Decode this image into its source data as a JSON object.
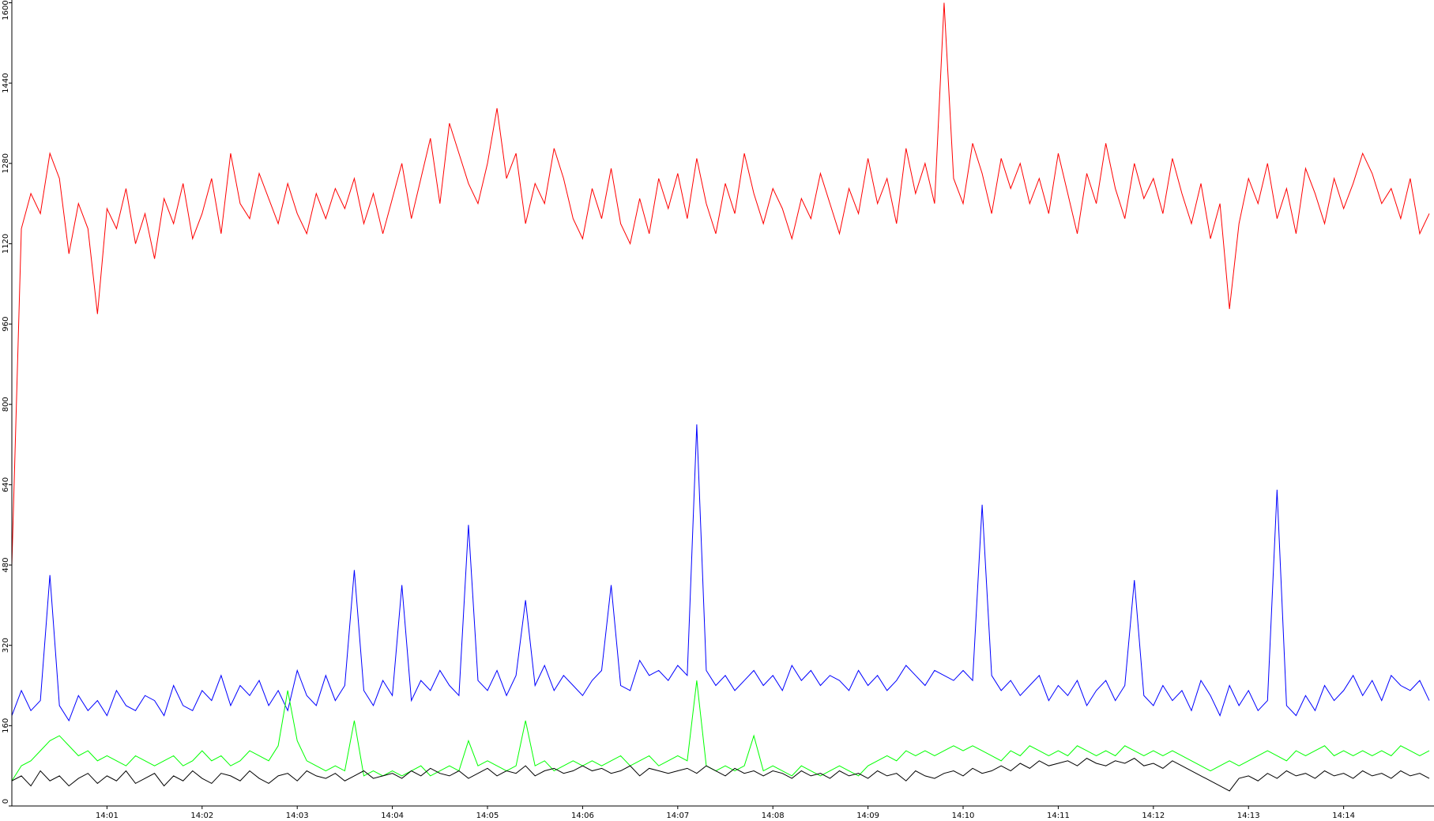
{
  "chart_data": {
    "type": "line",
    "x": [
      0,
      0.1,
      0.2,
      0.3,
      0.4,
      0.5,
      0.6,
      0.7,
      0.8,
      0.9,
      1,
      1.1,
      1.2,
      1.3,
      1.4,
      1.5,
      1.6,
      1.7,
      1.8,
      1.9,
      2,
      2.1,
      2.2,
      2.3,
      2.4,
      2.5,
      2.6,
      2.7,
      2.8,
      2.9,
      3,
      3.1,
      3.2,
      3.3,
      3.4,
      3.5,
      3.6,
      3.7,
      3.8,
      3.9,
      4,
      4.1,
      4.2,
      4.3,
      4.4,
      4.5,
      4.6,
      4.7,
      4.8,
      4.9,
      5,
      5.1,
      5.2,
      5.3,
      5.4,
      5.5,
      5.6,
      5.7,
      5.8,
      5.9,
      6,
      6.1,
      6.2,
      6.3,
      6.4,
      6.5,
      6.6,
      6.7,
      6.8,
      6.9,
      7,
      7.1,
      7.2,
      7.3,
      7.4,
      7.5,
      7.6,
      7.7,
      7.8,
      7.9,
      8,
      8.1,
      8.2,
      8.3,
      8.4,
      8.5,
      8.6,
      8.7,
      8.8,
      8.9,
      9,
      9.1,
      9.2,
      9.3,
      9.4,
      9.5,
      9.6,
      9.7,
      9.8,
      9.9,
      10,
      10.1,
      10.2,
      10.3,
      10.4,
      10.5,
      10.6,
      10.7,
      10.8,
      10.9,
      11,
      11.1,
      11.2,
      11.3,
      11.4,
      11.5,
      11.6,
      11.7,
      11.8,
      11.9,
      12,
      12.1,
      12.2,
      12.3,
      12.4,
      12.5,
      12.6,
      12.7,
      12.8,
      12.9,
      13,
      13.1,
      13.2,
      13.3,
      13.4,
      13.5,
      13.6,
      13.7,
      13.8,
      13.9,
      14,
      14.1,
      14.2,
      14.3,
      14.4,
      14.5,
      14.6,
      14.7,
      14.8,
      14.9
    ],
    "series": [
      {
        "color": "#ff0000",
        "values": [
          480,
          1150,
          1220,
          1180,
          1300,
          1250,
          1100,
          1200,
          1150,
          980,
          1190,
          1150,
          1230,
          1120,
          1180,
          1090,
          1210,
          1160,
          1240,
          1130,
          1180,
          1250,
          1140,
          1300,
          1200,
          1170,
          1260,
          1210,
          1160,
          1240,
          1180,
          1140,
          1220,
          1170,
          1230,
          1190,
          1250,
          1160,
          1220,
          1140,
          1210,
          1280,
          1170,
          1250,
          1330,
          1200,
          1360,
          1300,
          1240,
          1200,
          1280,
          1390,
          1250,
          1300,
          1160,
          1240,
          1200,
          1310,
          1250,
          1170,
          1130,
          1230,
          1170,
          1270,
          1160,
          1120,
          1210,
          1140,
          1250,
          1190,
          1260,
          1170,
          1290,
          1200,
          1140,
          1240,
          1180,
          1300,
          1220,
          1160,
          1230,
          1190,
          1130,
          1210,
          1170,
          1260,
          1200,
          1140,
          1230,
          1180,
          1290,
          1200,
          1250,
          1160,
          1310,
          1220,
          1280,
          1200,
          1600,
          1250,
          1200,
          1320,
          1260,
          1180,
          1290,
          1230,
          1280,
          1200,
          1250,
          1180,
          1300,
          1220,
          1140,
          1260,
          1200,
          1320,
          1230,
          1170,
          1280,
          1210,
          1250,
          1180,
          1290,
          1220,
          1160,
          1240,
          1130,
          1200,
          990,
          1160,
          1250,
          1200,
          1280,
          1170,
          1230,
          1140,
          1270,
          1220,
          1160,
          1250,
          1190,
          1240,
          1300,
          1260,
          1200,
          1230,
          1170,
          1250,
          1140,
          1180
        ]
      },
      {
        "color": "#0000ff",
        "values": [
          180,
          230,
          190,
          210,
          460,
          200,
          170,
          220,
          190,
          210,
          180,
          230,
          200,
          190,
          220,
          210,
          180,
          240,
          200,
          190,
          230,
          210,
          260,
          200,
          240,
          220,
          250,
          200,
          230,
          190,
          270,
          220,
          200,
          260,
          210,
          240,
          470,
          230,
          200,
          250,
          220,
          440,
          210,
          250,
          230,
          270,
          240,
          220,
          560,
          250,
          230,
          270,
          220,
          260,
          410,
          240,
          280,
          230,
          260,
          240,
          220,
          250,
          270,
          440,
          240,
          230,
          290,
          260,
          270,
          250,
          280,
          260,
          760,
          270,
          240,
          260,
          230,
          250,
          270,
          240,
          260,
          230,
          280,
          250,
          270,
          240,
          260,
          250,
          230,
          270,
          240,
          260,
          230,
          250,
          280,
          260,
          240,
          270,
          260,
          250,
          270,
          250,
          600,
          260,
          230,
          250,
          220,
          240,
          260,
          210,
          240,
          220,
          250,
          200,
          230,
          250,
          210,
          240,
          450,
          220,
          200,
          240,
          210,
          230,
          190,
          250,
          220,
          180,
          240,
          200,
          230,
          190,
          210,
          630,
          200,
          180,
          220,
          190,
          240,
          210,
          230,
          260,
          220,
          250,
          210,
          260,
          240,
          230,
          250,
          210
        ]
      },
      {
        "color": "#00ff00",
        "values": [
          50,
          80,
          90,
          110,
          130,
          140,
          120,
          100,
          110,
          90,
          100,
          90,
          80,
          100,
          90,
          80,
          90,
          100,
          80,
          90,
          110,
          90,
          100,
          80,
          90,
          110,
          100,
          90,
          120,
          230,
          130,
          90,
          80,
          70,
          80,
          70,
          170,
          60,
          70,
          60,
          70,
          60,
          70,
          80,
          60,
          70,
          80,
          70,
          130,
          80,
          90,
          80,
          70,
          80,
          170,
          80,
          90,
          70,
          80,
          90,
          80,
          90,
          80,
          90,
          100,
          80,
          90,
          100,
          80,
          90,
          100,
          90,
          250,
          80,
          70,
          80,
          70,
          80,
          140,
          70,
          80,
          70,
          60,
          80,
          70,
          60,
          70,
          80,
          70,
          60,
          80,
          90,
          100,
          90,
          110,
          100,
          110,
          100,
          110,
          120,
          110,
          120,
          110,
          100,
          90,
          110,
          100,
          120,
          110,
          100,
          110,
          100,
          120,
          110,
          100,
          110,
          100,
          120,
          110,
          100,
          110,
          100,
          110,
          100,
          90,
          80,
          70,
          80,
          90,
          80,
          90,
          100,
          110,
          100,
          90,
          110,
          100,
          110,
          120,
          100,
          110,
          100,
          110,
          100,
          110,
          100,
          120,
          110,
          100,
          110
        ]
      },
      {
        "color": "#000000",
        "values": [
          50,
          60,
          40,
          70,
          50,
          60,
          40,
          55,
          65,
          45,
          60,
          50,
          70,
          45,
          55,
          65,
          40,
          60,
          50,
          70,
          55,
          45,
          65,
          60,
          50,
          70,
          55,
          45,
          60,
          65,
          50,
          70,
          60,
          55,
          65,
          50,
          60,
          70,
          55,
          60,
          65,
          55,
          70,
          60,
          75,
          65,
          60,
          70,
          55,
          65,
          75,
          60,
          70,
          65,
          80,
          60,
          70,
          75,
          65,
          70,
          80,
          70,
          75,
          65,
          70,
          80,
          60,
          75,
          70,
          65,
          70,
          75,
          65,
          80,
          70,
          60,
          75,
          65,
          70,
          60,
          70,
          65,
          55,
          70,
          60,
          65,
          55,
          70,
          60,
          65,
          55,
          70,
          60,
          65,
          50,
          70,
          60,
          55,
          65,
          70,
          60,
          75,
          65,
          70,
          80,
          70,
          85,
          75,
          90,
          80,
          85,
          90,
          80,
          95,
          85,
          80,
          90,
          85,
          95,
          80,
          85,
          75,
          90,
          80,
          70,
          60,
          50,
          40,
          30,
          55,
          60,
          50,
          65,
          55,
          70,
          60,
          65,
          55,
          70,
          60,
          65,
          55,
          70,
          60,
          65,
          55,
          70,
          60,
          65,
          55
        ]
      }
    ],
    "xlim": [
      0,
      14.95
    ],
    "xticks": [
      {
        "value": 1,
        "label": "14:01"
      },
      {
        "value": 2,
        "label": "14:02"
      },
      {
        "value": 3,
        "label": "14:03"
      },
      {
        "value": 4,
        "label": "14:04"
      },
      {
        "value": 5,
        "label": "14:05"
      },
      {
        "value": 6,
        "label": "14:06"
      },
      {
        "value": 7,
        "label": "14:07"
      },
      {
        "value": 8,
        "label": "14:08"
      },
      {
        "value": 9,
        "label": "14:09"
      },
      {
        "value": 10,
        "label": "14:10"
      },
      {
        "value": 11,
        "label": "14:11"
      },
      {
        "value": 12,
        "label": "14:12"
      },
      {
        "value": 13,
        "label": "14:13"
      },
      {
        "value": 14,
        "label": "14:14"
      }
    ],
    "ylim": [
      0,
      1600
    ],
    "yticks": [
      0,
      160,
      320,
      480,
      640,
      800,
      960,
      1120,
      1280,
      1440,
      1600
    ],
    "grid": false
  }
}
